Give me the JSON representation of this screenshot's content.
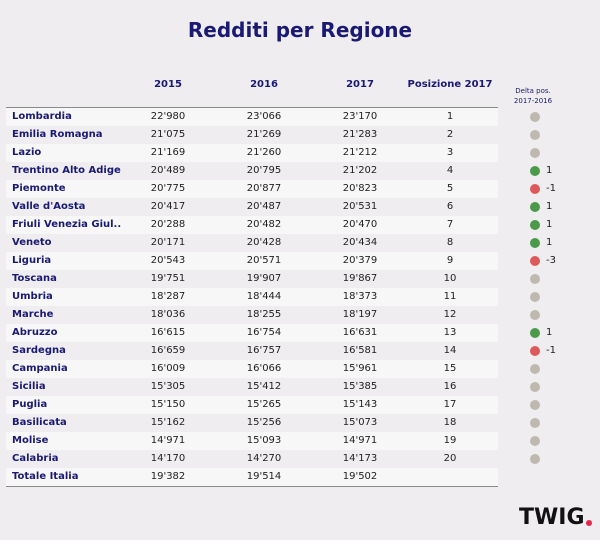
{
  "title": "Redditi per Regione",
  "headers": {
    "y2015": "2015",
    "y2016": "2016",
    "y2017": "2017",
    "pos2017": "Posizione 2017",
    "delta_line1": "Delta pos.",
    "delta_line2": "2017-2016"
  },
  "colors": {
    "neutral": "#bfb8ae",
    "up": "#4a9a4a",
    "down": "#de5a5a",
    "title": "#1a1a73"
  },
  "rows": [
    {
      "region": "Lombardia",
      "y2015": "22'980",
      "y2016": "23'066",
      "y2017": "23'170",
      "pos": "1",
      "delta": "",
      "trend": "neutral"
    },
    {
      "region": "Emilia Romagna",
      "y2015": "21'075",
      "y2016": "21'269",
      "y2017": "21'283",
      "pos": "2",
      "delta": "",
      "trend": "neutral"
    },
    {
      "region": "Lazio",
      "y2015": "21'169",
      "y2016": "21'260",
      "y2017": "21'212",
      "pos": "3",
      "delta": "",
      "trend": "neutral"
    },
    {
      "region": "Trentino Alto Adige",
      "y2015": "20'489",
      "y2016": "20'795",
      "y2017": "21'202",
      "pos": "4",
      "delta": "1",
      "trend": "up"
    },
    {
      "region": "Piemonte",
      "y2015": "20'775",
      "y2016": "20'877",
      "y2017": "20'823",
      "pos": "5",
      "delta": "-1",
      "trend": "down"
    },
    {
      "region": "Valle d'Aosta",
      "y2015": "20'417",
      "y2016": "20'487",
      "y2017": "20'531",
      "pos": "6",
      "delta": "1",
      "trend": "up"
    },
    {
      "region": "Friuli Venezia Giul..",
      "y2015": "20'288",
      "y2016": "20'482",
      "y2017": "20'470",
      "pos": "7",
      "delta": "1",
      "trend": "up"
    },
    {
      "region": "Veneto",
      "y2015": "20'171",
      "y2016": "20'428",
      "y2017": "20'434",
      "pos": "8",
      "delta": "1",
      "trend": "up"
    },
    {
      "region": "Liguria",
      "y2015": "20'543",
      "y2016": "20'571",
      "y2017": "20'379",
      "pos": "9",
      "delta": "-3",
      "trend": "down"
    },
    {
      "region": "Toscana",
      "y2015": "19'751",
      "y2016": "19'907",
      "y2017": "19'867",
      "pos": "10",
      "delta": "",
      "trend": "neutral"
    },
    {
      "region": "Umbria",
      "y2015": "18'287",
      "y2016": "18'444",
      "y2017": "18'373",
      "pos": "11",
      "delta": "",
      "trend": "neutral"
    },
    {
      "region": "Marche",
      "y2015": "18'036",
      "y2016": "18'255",
      "y2017": "18'197",
      "pos": "12",
      "delta": "",
      "trend": "neutral"
    },
    {
      "region": "Abruzzo",
      "y2015": "16'615",
      "y2016": "16'754",
      "y2017": "16'631",
      "pos": "13",
      "delta": "1",
      "trend": "up"
    },
    {
      "region": "Sardegna",
      "y2015": "16'659",
      "y2016": "16'757",
      "y2017": "16'581",
      "pos": "14",
      "delta": "-1",
      "trend": "down"
    },
    {
      "region": "Campania",
      "y2015": "16'009",
      "y2016": "16'066",
      "y2017": "15'961",
      "pos": "15",
      "delta": "",
      "trend": "neutral"
    },
    {
      "region": "Sicilia",
      "y2015": "15'305",
      "y2016": "15'412",
      "y2017": "15'385",
      "pos": "16",
      "delta": "",
      "trend": "neutral"
    },
    {
      "region": "Puglia",
      "y2015": "15'150",
      "y2016": "15'265",
      "y2017": "15'143",
      "pos": "17",
      "delta": "",
      "trend": "neutral"
    },
    {
      "region": "Basilicata",
      "y2015": "15'162",
      "y2016": "15'256",
      "y2017": "15'073",
      "pos": "18",
      "delta": "",
      "trend": "neutral"
    },
    {
      "region": "Molise",
      "y2015": "14'971",
      "y2016": "15'093",
      "y2017": "14'971",
      "pos": "19",
      "delta": "",
      "trend": "neutral"
    },
    {
      "region": "Calabria",
      "y2015": "14'170",
      "y2016": "14'270",
      "y2017": "14'173",
      "pos": "20",
      "delta": "",
      "trend": "neutral"
    },
    {
      "region": "Totale Italia",
      "y2015": "19'382",
      "y2016": "19'514",
      "y2017": "19'502",
      "pos": "",
      "delta": null,
      "trend": null
    }
  ],
  "logo": {
    "text": "TWIG",
    "accent": "#e8254a"
  }
}
